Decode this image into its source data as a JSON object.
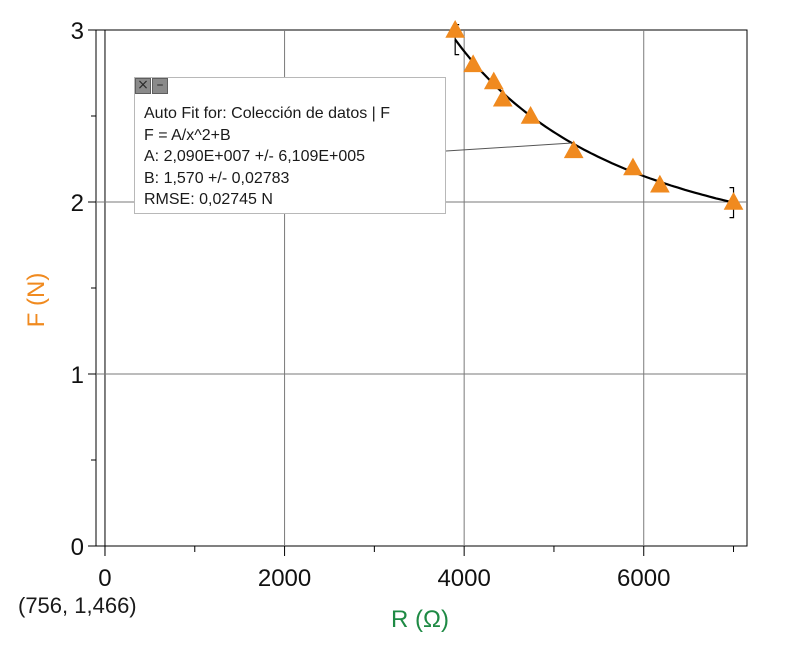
{
  "colors": {
    "data": "#f08a1f",
    "ylabel": "#f08a1f",
    "xlabel": "#1e8a44",
    "curve": "#000000",
    "grid": "#7a7a7a"
  },
  "chart_data": {
    "type": "scatter",
    "title": "",
    "xlabel": "R (Ω)",
    "ylabel": "F (N)",
    "xlim": [
      -100,
      7150
    ],
    "ylim": [
      0,
      3
    ],
    "x_ticks": [
      "0",
      "2000",
      "4000",
      "6000"
    ],
    "y_ticks": [
      "0",
      "1",
      "2",
      "3"
    ],
    "grid": true,
    "series": [
      {
        "marker": "triangle",
        "x": [
          3900,
          4100,
          4330,
          4430,
          4740,
          5220,
          5880,
          6180,
          7000
        ],
        "y": [
          3.0,
          2.8,
          2.7,
          2.6,
          2.5,
          2.3,
          2.2,
          2.1,
          2.0
        ]
      }
    ],
    "fit": {
      "equation": "F = A/x^2+B",
      "A": 20900000,
      "B": 1.57,
      "x_range": [
        3900,
        7000
      ]
    }
  },
  "fit_box": {
    "controls": [
      "×",
      "–"
    ],
    "lines": [
      "Auto Fit for: Colección de datos | F",
      "F = A/x^2+B",
      "A: 2,090E+007 +/- 6,109E+005",
      "B: 1,570 +/- 0,02783",
      "RMSE: 0,02745 N"
    ]
  },
  "coordinate_readout": "(756, 1,466)"
}
